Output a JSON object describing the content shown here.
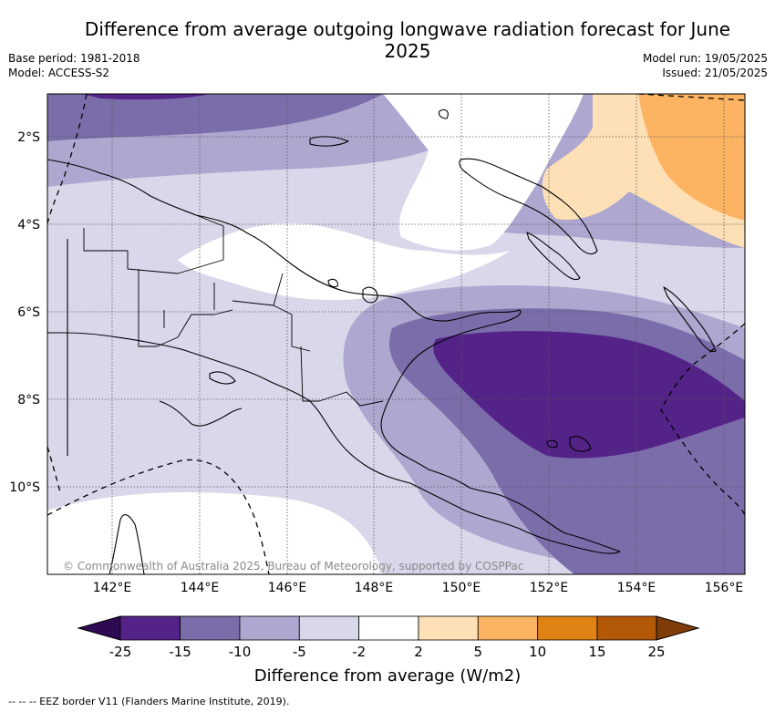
{
  "title": "Difference from average outgoing longwave radiation forecast for June 2025",
  "meta": {
    "base_period": "Base period: 1981-2018",
    "model": "Model: ACCESS-S2",
    "model_run": "Model run: 19/05/2025",
    "issued": "Issued: 21/05/2025"
  },
  "map": {
    "lat_ticks": [
      "2°S",
      "4°S",
      "6°S",
      "8°S",
      "10°S"
    ],
    "lon_ticks": [
      "142°E",
      "144°E",
      "146°E",
      "148°E",
      "150°E",
      "152°E",
      "154°E",
      "156°E"
    ],
    "copyright": "© Commonwealth of Australia 2025, Bureau of Meteorology, supported by COSPPac"
  },
  "colorbar": {
    "labels": [
      "-25",
      "-15",
      "-10",
      "-5",
      "-2",
      "2",
      "5",
      "10",
      "15",
      "25"
    ],
    "colors": {
      "lt_-25": "#2e0a52",
      "-25_-15": "#542388",
      "-15_-10": "#7b6daa",
      "-10_-5": "#aea8d0",
      "-5_-2": "#d8d8ea",
      "-2_2": "#ffffff",
      "2_5": "#fde0b6",
      "5_10": "#fdb462",
      "10_15": "#e08214",
      "15_25": "#b35806",
      "gt_25": "#7f3b08"
    },
    "title": "Difference from average (W/m2)"
  },
  "footer": "-- -- -- EEZ border V11 (Flanders Marine Institute, 2019)."
}
